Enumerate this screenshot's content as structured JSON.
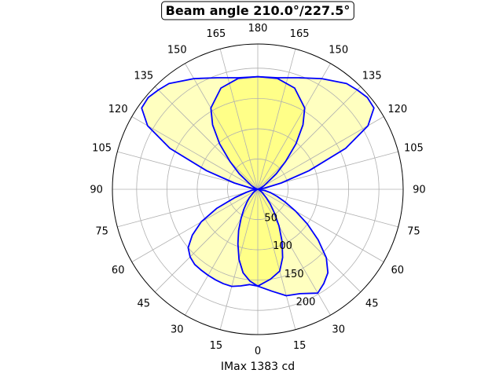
{
  "title": "Beam angle 210.0°/227.5°",
  "footer": "IMax 1383 cd",
  "colors": {
    "curve": "#0000ff",
    "fill_outer": "#ffffc0",
    "fill_inner": "#ffff88",
    "grid": "#b0b0b0"
  },
  "chart_data": {
    "type": "polar",
    "title": "Beam angle 210.0°/227.5°",
    "xlabel": "IMax 1383 cd",
    "theta_zero": "bottom",
    "theta_direction": "symmetric",
    "r_lim": [
      0,
      240
    ],
    "r_ticks": [
      50,
      100,
      150,
      200
    ],
    "grid": true,
    "angle_ticks": [
      {
        "angle": 0,
        "label": "0"
      },
      {
        "angle": 15,
        "label": "15"
      },
      {
        "angle": 30,
        "label": "30"
      },
      {
        "angle": 45,
        "label": "45"
      },
      {
        "angle": 60,
        "label": "60"
      },
      {
        "angle": 75,
        "label": "75"
      },
      {
        "angle": 90,
        "label": "90"
      },
      {
        "angle": 105,
        "label": "105"
      },
      {
        "angle": 120,
        "label": "120"
      },
      {
        "angle": 135,
        "label": "135"
      },
      {
        "angle": 150,
        "label": "150"
      },
      {
        "angle": 165,
        "label": "165"
      },
      {
        "angle": 180,
        "label": "180"
      },
      {
        "angle": -165,
        "label": "165"
      },
      {
        "angle": -150,
        "label": "150"
      },
      {
        "angle": -135,
        "label": "135"
      },
      {
        "angle": -120,
        "label": "120"
      },
      {
        "angle": -105,
        "label": "105"
      },
      {
        "angle": -90,
        "label": "90"
      },
      {
        "angle": -75,
        "label": "75"
      },
      {
        "angle": -60,
        "label": "60"
      },
      {
        "angle": -45,
        "label": "45"
      },
      {
        "angle": -30,
        "label": "30"
      },
      {
        "angle": -15,
        "label": "15"
      }
    ],
    "series": [
      {
        "fill": "outer",
        "points": [
          [
            0,
            160
          ],
          [
            8,
            170
          ],
          [
            15,
            182
          ],
          [
            22,
            186
          ],
          [
            30,
            198
          ],
          [
            35,
            190
          ],
          [
            40,
            180
          ],
          [
            45,
            160
          ],
          [
            50,
            130
          ],
          [
            55,
            100
          ],
          [
            60,
            72
          ],
          [
            65,
            50
          ],
          [
            70,
            34
          ],
          [
            75,
            22
          ],
          [
            80,
            12
          ],
          [
            90,
            0
          ],
          [
            100,
            12
          ],
          [
            105,
            40
          ],
          [
            110,
            90
          ],
          [
            115,
            160
          ],
          [
            120,
            210
          ],
          [
            125,
            234
          ],
          [
            130,
            236
          ],
          [
            135,
            232
          ],
          [
            140,
            228
          ],
          [
            150,
            211
          ],
          [
            160,
            196
          ],
          [
            170,
            187
          ],
          [
            180,
            186
          ],
          [
            -170,
            187
          ],
          [
            -160,
            196
          ],
          [
            -150,
            211
          ],
          [
            -140,
            228
          ],
          [
            -135,
            232
          ],
          [
            -130,
            236
          ],
          [
            -125,
            234
          ],
          [
            -120,
            210
          ],
          [
            -115,
            160
          ],
          [
            -110,
            90
          ],
          [
            -105,
            40
          ],
          [
            -100,
            12
          ],
          [
            -90,
            0
          ],
          [
            -80,
            10
          ],
          [
            -75,
            20
          ],
          [
            -70,
            40
          ],
          [
            -65,
            75
          ],
          [
            -60,
            108
          ],
          [
            -55,
            132
          ],
          [
            -50,
            150
          ],
          [
            -45,
            158
          ],
          [
            -40,
            162
          ],
          [
            -35,
            163
          ],
          [
            -30,
            164
          ],
          [
            -25,
            165
          ],
          [
            -20,
            166
          ],
          [
            -15,
            166
          ],
          [
            -10,
            162
          ],
          [
            -5,
            158
          ],
          [
            0,
            160
          ]
        ]
      },
      {
        "fill": "inner",
        "points": [
          [
            0,
            160
          ],
          [
            8,
            150
          ],
          [
            15,
            140
          ],
          [
            20,
            120
          ],
          [
            25,
            95
          ],
          [
            30,
            70
          ],
          [
            35,
            48
          ],
          [
            40,
            32
          ],
          [
            45,
            20
          ],
          [
            55,
            8
          ],
          [
            70,
            2
          ],
          [
            90,
            0
          ],
          [
            110,
            4
          ],
          [
            120,
            12
          ],
          [
            130,
            40
          ],
          [
            135,
            65
          ],
          [
            140,
            98
          ],
          [
            145,
            130
          ],
          [
            150,
            155
          ],
          [
            160,
            178
          ],
          [
            170,
            186
          ],
          [
            180,
            186
          ],
          [
            -170,
            186
          ],
          [
            -160,
            178
          ],
          [
            -150,
            155
          ],
          [
            -145,
            130
          ],
          [
            -140,
            98
          ],
          [
            -135,
            65
          ],
          [
            -130,
            40
          ],
          [
            -120,
            12
          ],
          [
            -110,
            4
          ],
          [
            -90,
            0
          ],
          [
            -70,
            2
          ],
          [
            -55,
            8
          ],
          [
            -45,
            20
          ],
          [
            -40,
            28
          ],
          [
            -35,
            40
          ],
          [
            -30,
            55
          ],
          [
            -25,
            75
          ],
          [
            -20,
            96
          ],
          [
            -15,
            120
          ],
          [
            -10,
            140
          ],
          [
            -5,
            152
          ],
          [
            0,
            160
          ]
        ]
      }
    ]
  }
}
